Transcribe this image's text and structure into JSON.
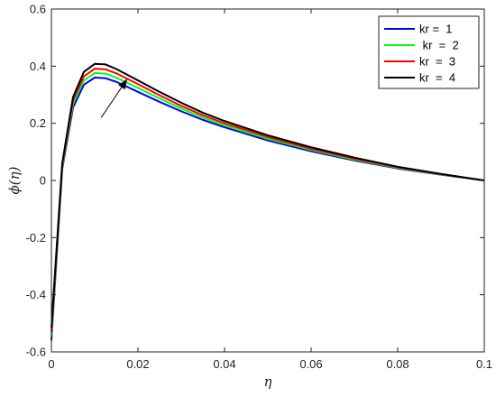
{
  "chart_data": {
    "type": "line",
    "xlabel": "η",
    "ylabel": "ϕ(η)",
    "xlim": [
      0,
      0.1
    ],
    "ylim": [
      -0.6,
      0.6
    ],
    "xticks": [
      0,
      0.02,
      0.04,
      0.06,
      0.08,
      0.1
    ],
    "xtick_labels": [
      "0",
      "0.02",
      "0.04",
      "0.06",
      "0.08",
      "0.1"
    ],
    "yticks": [
      -0.6,
      -0.4,
      -0.2,
      0,
      0.2,
      0.4,
      0.6
    ],
    "ytick_labels": [
      "-0.6",
      "-0.4",
      "-0.2",
      "0",
      "0.2",
      "0.4",
      "0.6"
    ],
    "grid": false,
    "legend_position": "top-right",
    "x": [
      0,
      0.0025,
      0.005,
      0.0075,
      0.01,
      0.0125,
      0.015,
      0.02,
      0.025,
      0.03,
      0.035,
      0.04,
      0.05,
      0.06,
      0.07,
      0.08,
      0.09,
      0.1
    ],
    "series": [
      {
        "name": "kr =  1",
        "color": "#0000ff",
        "values": [
          -0.56,
          0.04,
          0.255,
          0.335,
          0.36,
          0.358,
          0.345,
          0.31,
          0.275,
          0.242,
          0.212,
          0.186,
          0.14,
          0.102,
          0.07,
          0.042,
          0.02,
          0.0
        ]
      },
      {
        "name": " kr  =  2",
        "color": "#00ff00",
        "values": [
          -0.545,
          0.047,
          0.268,
          0.35,
          0.376,
          0.374,
          0.36,
          0.324,
          0.287,
          0.252,
          0.22,
          0.193,
          0.146,
          0.107,
          0.073,
          0.044,
          0.021,
          0.0
        ]
      },
      {
        "name": "kr  =  3",
        "color": "#ff0000",
        "values": [
          -0.53,
          0.054,
          0.28,
          0.364,
          0.391,
          0.389,
          0.375,
          0.337,
          0.298,
          0.261,
          0.228,
          0.2,
          0.152,
          0.111,
          0.076,
          0.046,
          0.022,
          0.0
        ]
      },
      {
        "name": "kr  =  4",
        "color": "#000000",
        "values": [
          -0.515,
          0.06,
          0.292,
          0.38,
          0.408,
          0.406,
          0.39,
          0.35,
          0.31,
          0.272,
          0.237,
          0.208,
          0.158,
          0.116,
          0.08,
          0.048,
          0.023,
          0.0
        ]
      }
    ],
    "annotation": {
      "type": "arrow",
      "from": [
        0.0115,
        0.22
      ],
      "to": [
        0.0175,
        0.355
      ]
    }
  }
}
